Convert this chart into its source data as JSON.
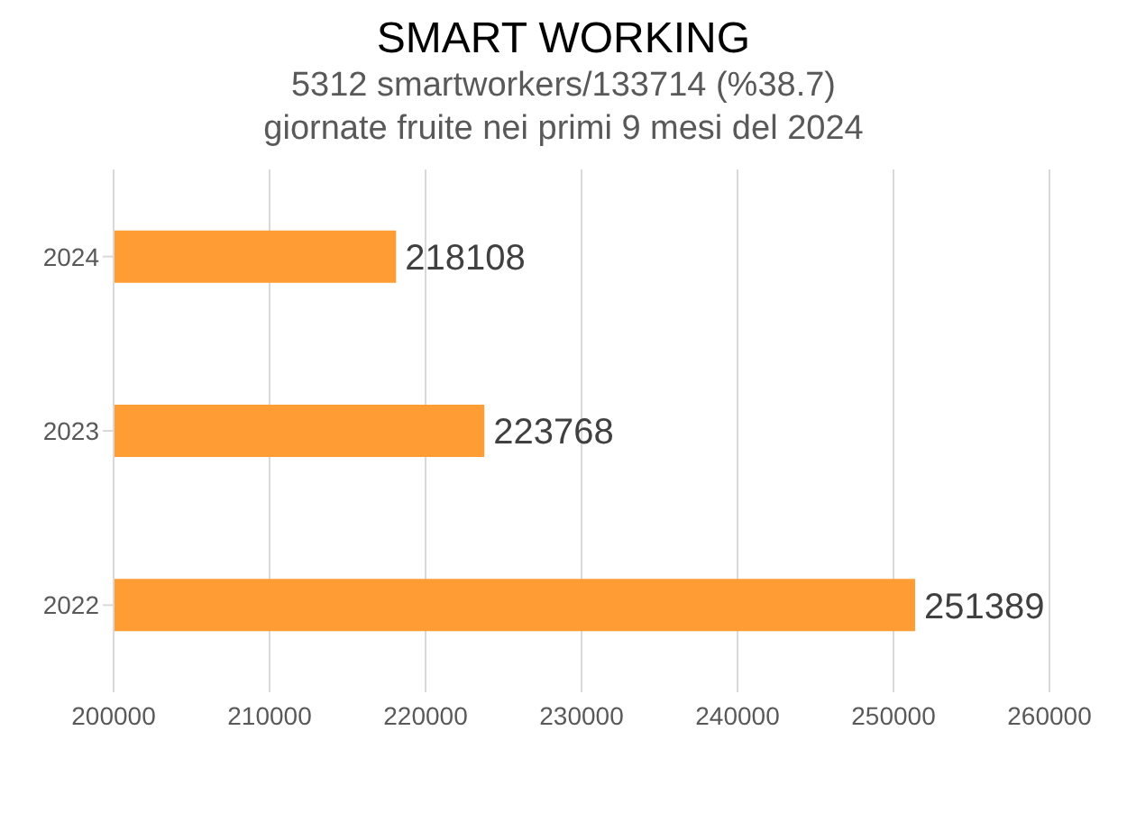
{
  "chart_data": {
    "type": "bar",
    "orientation": "horizontal",
    "title": "SMART WORKING",
    "subtitle": "5312 smartworkers/133714 (%38.7)\ngiornate fruite nei primi 9 mesi del 2024",
    "categories": [
      "2024",
      "2023",
      "2022"
    ],
    "values": [
      218108,
      223768,
      251389
    ],
    "color": "#ff9c33",
    "xlim": [
      200000,
      260000
    ],
    "xticks": [
      200000,
      210000,
      220000,
      230000,
      240000,
      250000,
      260000
    ],
    "grid": "x",
    "data_labels": true,
    "legend": false
  }
}
